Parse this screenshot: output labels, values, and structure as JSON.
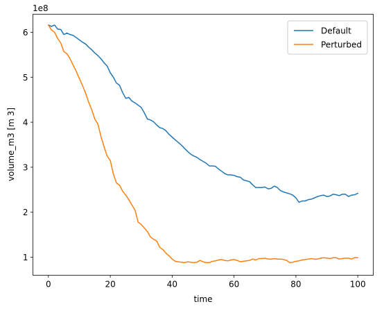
{
  "chart_data": {
    "type": "line",
    "xlabel": "time",
    "ylabel": "volume_m3 [m 3]",
    "offset_label": "1e8",
    "xlim": [
      -5,
      105
    ],
    "ylim": [
      0.6,
      6.4
    ],
    "xticks": [
      0,
      20,
      40,
      60,
      80,
      100
    ],
    "xtick_labels": [
      "0",
      "20",
      "40",
      "60",
      "80",
      "100"
    ],
    "yticks": [
      1,
      2,
      3,
      4,
      5,
      6
    ],
    "ytick_labels": [
      "1",
      "2",
      "3",
      "4",
      "5",
      "6"
    ],
    "y_multiplier": 100000000,
    "grid": false,
    "legend_position": "top-right",
    "series": [
      {
        "name": "Default",
        "color": "#1f77b4",
        "x": [
          0,
          1,
          2,
          3,
          4,
          5,
          6,
          7,
          8,
          9,
          10,
          11,
          12,
          13,
          14,
          15,
          16,
          17,
          18,
          19,
          20,
          21,
          22,
          23,
          24,
          25,
          26,
          27,
          28,
          29,
          30,
          31,
          32,
          33,
          34,
          35,
          36,
          37,
          38,
          39,
          40,
          41,
          42,
          43,
          44,
          45,
          46,
          47,
          48,
          49,
          50,
          51,
          52,
          53,
          54,
          55,
          56,
          57,
          58,
          59,
          60,
          61,
          62,
          63,
          64,
          65,
          66,
          67,
          68,
          69,
          70,
          71,
          72,
          73,
          74,
          75,
          76,
          77,
          78,
          79,
          80,
          81,
          82,
          83,
          84,
          85,
          86,
          87,
          88,
          89,
          90,
          91,
          92,
          93,
          94,
          95,
          96,
          97,
          98,
          99,
          100
        ],
        "values": [
          6.16,
          6.13,
          6.16,
          6.07,
          6.06,
          5.95,
          5.98,
          5.95,
          5.93,
          5.88,
          5.83,
          5.78,
          5.74,
          5.67,
          5.61,
          5.54,
          5.48,
          5.41,
          5.32,
          5.25,
          5.1,
          5.0,
          4.87,
          4.82,
          4.66,
          4.53,
          4.55,
          4.47,
          4.43,
          4.38,
          4.33,
          4.21,
          4.07,
          4.05,
          4.01,
          3.94,
          3.88,
          3.86,
          3.81,
          3.73,
          3.67,
          3.61,
          3.55,
          3.49,
          3.42,
          3.35,
          3.29,
          3.25,
          3.22,
          3.17,
          3.13,
          3.09,
          3.03,
          3.03,
          3.02,
          2.96,
          2.91,
          2.86,
          2.83,
          2.83,
          2.82,
          2.79,
          2.78,
          2.72,
          2.7,
          2.68,
          2.61,
          2.55,
          2.55,
          2.55,
          2.56,
          2.52,
          2.53,
          2.58,
          2.55,
          2.48,
          2.45,
          2.43,
          2.41,
          2.38,
          2.32,
          2.22,
          2.25,
          2.25,
          2.28,
          2.29,
          2.32,
          2.35,
          2.37,
          2.38,
          2.35,
          2.36,
          2.4,
          2.39,
          2.37,
          2.4,
          2.4,
          2.35,
          2.38,
          2.39,
          2.42
        ]
      },
      {
        "name": "Perturbed",
        "color": "#ff7f0e",
        "x": [
          0,
          1,
          2,
          3,
          4,
          5,
          6,
          7,
          8,
          9,
          10,
          11,
          12,
          13,
          14,
          15,
          16,
          17,
          18,
          19,
          20,
          21,
          22,
          23,
          24,
          25,
          26,
          27,
          28,
          29,
          30,
          31,
          32,
          33,
          34,
          35,
          36,
          37,
          38,
          39,
          40,
          41,
          42,
          43,
          44,
          45,
          46,
          47,
          48,
          49,
          50,
          51,
          52,
          53,
          54,
          55,
          56,
          57,
          58,
          59,
          60,
          61,
          62,
          63,
          64,
          65,
          66,
          67,
          68,
          69,
          70,
          71,
          72,
          73,
          74,
          75,
          76,
          77,
          78,
          79,
          80,
          81,
          82,
          83,
          84,
          85,
          86,
          87,
          88,
          89,
          90,
          91,
          92,
          93,
          94,
          95,
          96,
          97,
          98,
          99,
          100
        ],
        "values": [
          6.16,
          6.05,
          6.0,
          5.86,
          5.76,
          5.57,
          5.52,
          5.41,
          5.27,
          5.13,
          4.97,
          4.82,
          4.65,
          4.45,
          4.28,
          4.07,
          3.96,
          3.68,
          3.45,
          3.25,
          3.15,
          2.85,
          2.65,
          2.6,
          2.47,
          2.38,
          2.28,
          2.16,
          2.05,
          1.78,
          1.73,
          1.65,
          1.57,
          1.45,
          1.4,
          1.36,
          1.22,
          1.17,
          1.09,
          1.03,
          0.96,
          0.91,
          0.9,
          0.89,
          0.88,
          0.9,
          0.89,
          0.88,
          0.89,
          0.93,
          0.9,
          0.88,
          0.88,
          0.91,
          0.92,
          0.94,
          0.95,
          0.93,
          0.92,
          0.94,
          0.95,
          0.93,
          0.9,
          0.91,
          0.92,
          0.93,
          0.96,
          0.94,
          0.97,
          0.97,
          0.98,
          0.96,
          0.96,
          0.97,
          0.96,
          0.96,
          0.95,
          0.93,
          0.88,
          0.89,
          0.91,
          0.92,
          0.94,
          0.95,
          0.96,
          0.97,
          0.96,
          0.96,
          0.98,
          0.99,
          0.98,
          0.97,
          0.99,
          0.99,
          0.96,
          0.97,
          0.98,
          0.98,
          0.96,
          0.99,
          0.99
        ]
      }
    ]
  }
}
